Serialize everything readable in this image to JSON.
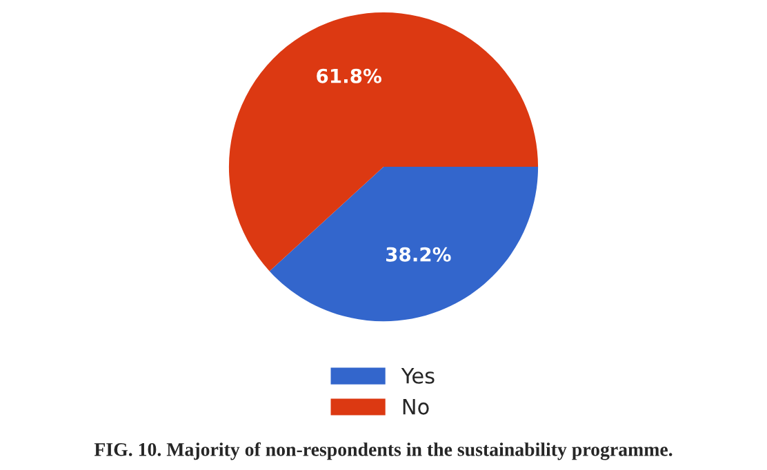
{
  "chart_data": {
    "type": "pie",
    "title": "FIG. 10. Majority of non-respondents in the sustainability programme.",
    "categories": [
      "Yes",
      "No"
    ],
    "values": [
      38.2,
      61.8
    ],
    "colors": [
      "#3366cc",
      "#dc3912"
    ],
    "value_labels": [
      "38.2%",
      "61.8%"
    ],
    "legend": "bottom"
  }
}
